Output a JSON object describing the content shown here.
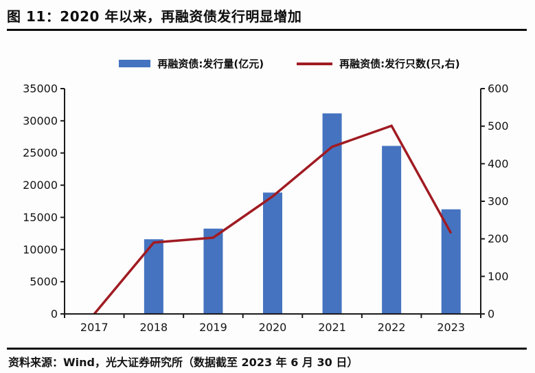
{
  "header": {
    "title": "图 11：2020 年以来，再融资债发行明显增加"
  },
  "legend": [
    {
      "label": "再融资债:发行量(亿元)",
      "type": "bar",
      "color": "#4573C0"
    },
    {
      "label": "再融资债:发行只数(只,右)",
      "type": "line",
      "color": "#A01B22"
    }
  ],
  "chart_data": {
    "type": "bar+line combo",
    "categories": [
      "2017",
      "2018",
      "2019",
      "2020",
      "2021",
      "2022",
      "2023"
    ],
    "series": [
      {
        "name": "再融资债:发行量(亿元)",
        "type": "bar",
        "axis": "left",
        "color": "#4573C0",
        "values": [
          0,
          11600,
          13250,
          18850,
          31150,
          26100,
          16250
        ]
      },
      {
        "name": "再融资债:发行只数(只,右)",
        "type": "line",
        "axis": "right",
        "color": "#A01B22",
        "values": [
          0,
          190,
          203,
          313,
          445,
          501,
          215
        ]
      }
    ],
    "left_axis": {
      "min": 0,
      "max": 35000,
      "step": 5000,
      "ticks": [
        "0",
        "5000",
        "10000",
        "15000",
        "20000",
        "25000",
        "30000",
        "35000"
      ]
    },
    "right_axis": {
      "min": 0,
      "max": 600,
      "step": 100,
      "ticks": [
        "0",
        "100",
        "200",
        "300",
        "400",
        "500",
        "600"
      ]
    },
    "grid": false,
    "legend_position": "top",
    "axis_color": "#1a1a1a"
  },
  "footer": {
    "source": "资料来源：Wind，光大证券研究所（数据截至 2023 年 6 月 30 日）"
  }
}
